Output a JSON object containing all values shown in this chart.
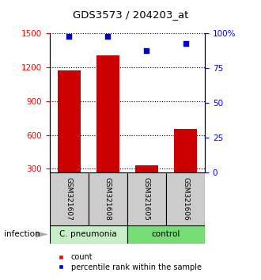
{
  "title": "GDS3573 / 204203_at",
  "samples": [
    "GSM321607",
    "GSM321608",
    "GSM321605",
    "GSM321606"
  ],
  "counts": [
    1175,
    1310,
    330,
    655
  ],
  "percentile_ranks": [
    98,
    98,
    88,
    93
  ],
  "bar_color": "#cc0000",
  "dot_color": "#0000cc",
  "yticks_left": [
    300,
    600,
    900,
    1200,
    1500
  ],
  "yticks_right_vals": [
    0,
    25,
    50,
    75,
    100
  ],
  "yticks_right_labels": [
    "0",
    "25",
    "50",
    "75",
    "100%"
  ],
  "ymin": 270,
  "ymax": 1500,
  "bar_width": 0.6,
  "cpneumonia_color": "#c8eec8",
  "control_color": "#77dd77",
  "sample_box_color": "#cccccc",
  "infection_label": "infection",
  "legend_count_label": "count",
  "legend_pct_label": "percentile rank within the sample"
}
